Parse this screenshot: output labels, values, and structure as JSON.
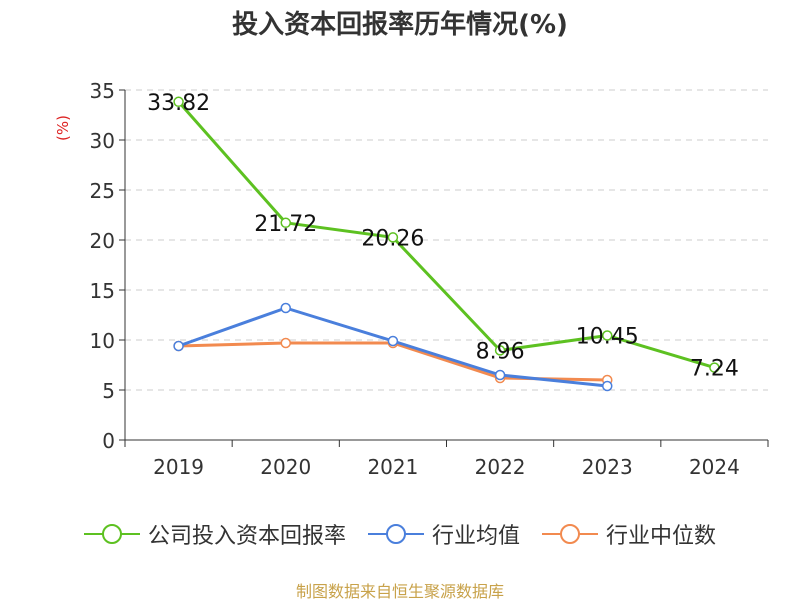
{
  "chart_data": {
    "type": "line",
    "title": "投入资本回报率历年情况(%)",
    "ylabel": "(%)",
    "categories": [
      "2019",
      "2020",
      "2021",
      "2022",
      "2023",
      "2024"
    ],
    "ylim": [
      0,
      35
    ],
    "yticks": [
      0,
      5,
      10,
      15,
      20,
      25,
      30,
      35
    ],
    "grid": true,
    "legend_position": "bottom",
    "series": [
      {
        "name": "公司投入资本回报率",
        "color": "#5dc121",
        "values": [
          33.82,
          21.72,
          20.26,
          8.96,
          10.45,
          7.24
        ],
        "labels": [
          "33.82",
          "21.72",
          "20.26",
          "8.96",
          "10.45",
          "7.24"
        ]
      },
      {
        "name": "行业均值",
        "color": "#4a7fdc",
        "values": [
          9.4,
          13.2,
          9.9,
          6.5,
          5.4,
          null
        ]
      },
      {
        "name": "行业中位数",
        "color": "#f28a4f",
        "values": [
          9.4,
          9.7,
          9.7,
          6.2,
          6.0,
          null
        ]
      }
    ]
  },
  "source": "制图数据来自恒生聚源数据库"
}
